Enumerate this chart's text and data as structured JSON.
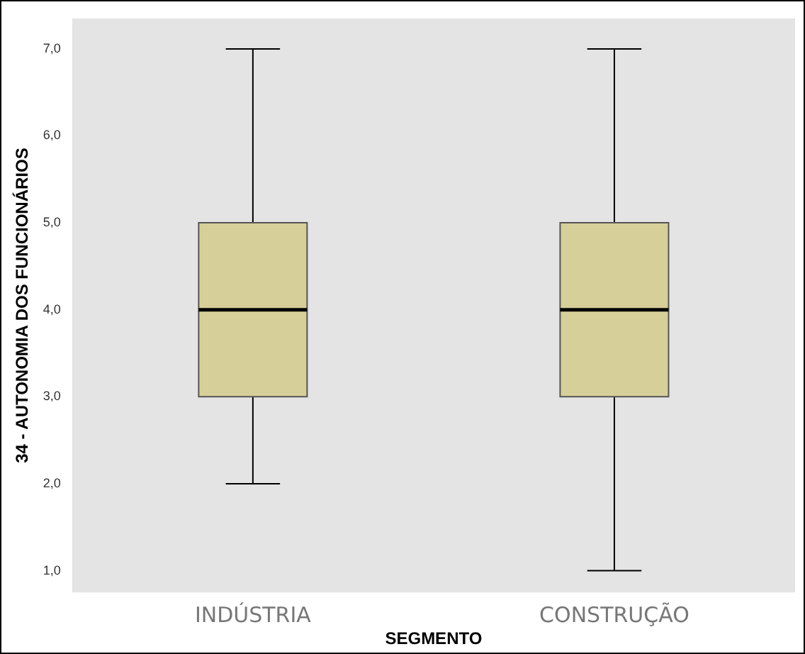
{
  "chart_data": {
    "type": "box",
    "xlabel": "SEGMENTO",
    "ylabel": "34 - AUTONOMIA DOS FUNCIONÁRIOS",
    "categories": [
      "INDÚSTRIA",
      "CONSTRUÇÃO"
    ],
    "color": "#d6cf9a",
    "boxes": [
      {
        "low": 2,
        "q1": 3,
        "median": 4,
        "q3": 5,
        "high": 7
      },
      {
        "low": 1,
        "q1": 3,
        "median": 4,
        "q3": 5,
        "high": 7
      }
    ],
    "ylim": [
      0.75,
      7.35
    ],
    "yticks": [
      {
        "value": 1,
        "label": "1,0"
      },
      {
        "value": 2,
        "label": "2,0"
      },
      {
        "value": 3,
        "label": "3,0"
      },
      {
        "value": 4,
        "label": "4,0"
      },
      {
        "value": 5,
        "label": "5,0"
      },
      {
        "value": 6,
        "label": "6,0"
      },
      {
        "value": 7,
        "label": "7,0"
      }
    ],
    "grid": false,
    "legend": false
  }
}
